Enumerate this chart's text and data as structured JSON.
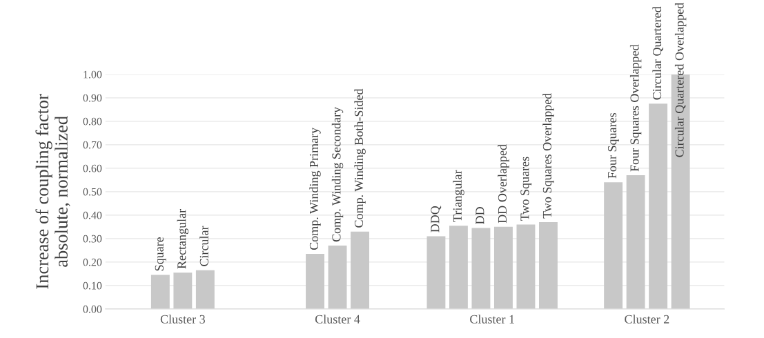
{
  "chart_data": {
    "type": "bar",
    "ylabel": "Increase of coupling factor\nabsolute, normalized",
    "categories": [
      "Cluster 3",
      "Cluster 4",
      "Cluster 1",
      "Cluster 2"
    ],
    "series": [
      {
        "name": "Square",
        "color": "#c8c8c8",
        "values": [
          0.145,
          null,
          null,
          null
        ]
      },
      {
        "name": "Rectangular",
        "color": "#c8c8c8",
        "values": [
          0.155,
          null,
          null,
          null
        ]
      },
      {
        "name": "Circular",
        "color": "#c8c8c8",
        "values": [
          0.165,
          null,
          null,
          null
        ]
      },
      {
        "name": "Comp. Winding Primary",
        "color": "#c8c8c8",
        "values": [
          null,
          0.235,
          null,
          null
        ]
      },
      {
        "name": "Comp. Winding Secondary",
        "color": "#c8c8c8",
        "values": [
          null,
          0.27,
          null,
          null
        ]
      },
      {
        "name": "Comp. Winding Both-Sided",
        "color": "#c8c8c8",
        "values": [
          null,
          0.33,
          null,
          null
        ]
      },
      {
        "name": "DDQ",
        "color": "#c8c8c8",
        "values": [
          null,
          null,
          0.31,
          null
        ]
      },
      {
        "name": "Triangular",
        "color": "#c8c8c8",
        "values": [
          null,
          null,
          0.355,
          null
        ]
      },
      {
        "name": "DD",
        "color": "#c8c8c8",
        "values": [
          null,
          null,
          0.345,
          null
        ]
      },
      {
        "name": "DD Overlapped",
        "color": "#c8c8c8",
        "values": [
          null,
          null,
          0.35,
          null
        ]
      },
      {
        "name": "Two Squares",
        "color": "#c8c8c8",
        "values": [
          null,
          null,
          0.36,
          null
        ]
      },
      {
        "name": "Two Squares Overlapped",
        "color": "#c8c8c8",
        "values": [
          null,
          null,
          0.37,
          null
        ]
      },
      {
        "name": "Four Squares",
        "color": "#c8c8c8",
        "values": [
          null,
          null,
          null,
          0.54
        ]
      },
      {
        "name": "Four Squares Overlapped",
        "color": "#c8c8c8",
        "values": [
          null,
          null,
          null,
          0.57
        ]
      },
      {
        "name": "Circular Quartered",
        "color": "#c8c8c8",
        "values": [
          null,
          null,
          null,
          0.875
        ]
      },
      {
        "name": "Circular Quartered Overlapped",
        "color": "#c8c8c8",
        "values": [
          null,
          null,
          null,
          1.0
        ]
      }
    ],
    "ylim": [
      0,
      1
    ],
    "yticks": [
      {
        "value": 0,
        "label": "0.00"
      },
      {
        "value": 0.1,
        "label": "0.10"
      },
      {
        "value": 0.2,
        "label": "0.20"
      },
      {
        "value": 0.3,
        "label": "0.30"
      },
      {
        "value": 0.4,
        "label": "0.40"
      },
      {
        "value": 0.5,
        "label": "0.50"
      },
      {
        "value": 0.6,
        "label": "0.60"
      },
      {
        "value": 0.7,
        "label": "0.70"
      },
      {
        "value": 0.8,
        "label": "0.80"
      },
      {
        "value": 0.9,
        "label": "0.90"
      },
      {
        "value": 1.0,
        "label": "1.00"
      }
    ],
    "grid": "y",
    "legend": false
  }
}
